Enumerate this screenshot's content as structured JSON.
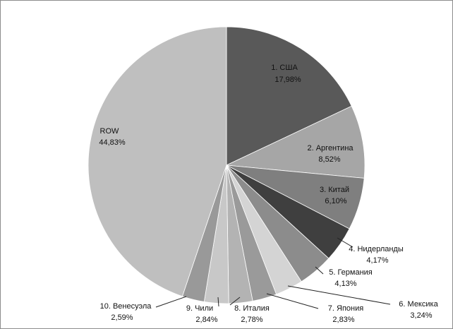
{
  "chart_data": {
    "type": "pie",
    "slices": [
      {
        "rank": "1.",
        "label": "США",
        "value": "17,98%",
        "pct": 17.98,
        "color": "#595959"
      },
      {
        "rank": "2.",
        "label": "Аргентина",
        "value": "8,52%",
        "pct": 8.52,
        "color": "#a6a6a6"
      },
      {
        "rank": "3.",
        "label": "Китай",
        "value": "6,10%",
        "pct": 6.1,
        "color": "#7f7f7f"
      },
      {
        "rank": "4.",
        "label": "Нидерланды",
        "value": "4,17%",
        "pct": 4.17,
        "color": "#3f3f3f"
      },
      {
        "rank": "5.",
        "label": "Германия",
        "value": "4,13%",
        "pct": 4.13,
        "color": "#8c8c8c"
      },
      {
        "rank": "6.",
        "label": "Мексика",
        "value": "3,24%",
        "pct": 3.24,
        "color": "#d4d4d4"
      },
      {
        "rank": "7.",
        "label": "Япония",
        "value": "2,83%",
        "pct": 2.83,
        "color": "#9a9a9a"
      },
      {
        "rank": "8.",
        "label": "Италия",
        "value": "2,78%",
        "pct": 2.78,
        "color": "#b3b3b3"
      },
      {
        "rank": "9.",
        "label": "Чили",
        "value": "2,84%",
        "pct": 2.84,
        "color": "#c8c8c8"
      },
      {
        "rank": "10.",
        "label": "Венесуэла",
        "value": "2,59%",
        "pct": 2.59,
        "color": "#999999"
      },
      {
        "rank": "",
        "label": "ROW",
        "value": "44,83%",
        "pct": 44.83,
        "color": "#bfbfbf"
      }
    ],
    "start_angle_deg": 0,
    "direction": "clockwise",
    "legend": "none"
  }
}
